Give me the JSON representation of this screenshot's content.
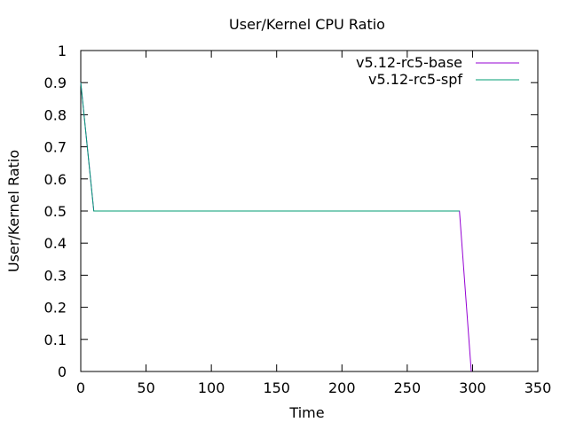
{
  "chart_data": {
    "type": "line",
    "title": "User/Kernel CPU Ratio",
    "xlabel": "Time",
    "ylabel": "User/Kernel Ratio",
    "xlim": [
      0,
      350
    ],
    "ylim": [
      0,
      1
    ],
    "x_ticks": [
      0,
      50,
      100,
      150,
      200,
      250,
      300,
      350
    ],
    "y_ticks": [
      0,
      0.1,
      0.2,
      0.3,
      0.4,
      0.5,
      0.6,
      0.7,
      0.8,
      0.9,
      1
    ],
    "x_tick_labels": [
      "0",
      "50",
      "100",
      "150",
      "200",
      "250",
      "300",
      "350"
    ],
    "y_tick_labels": [
      "0",
      "0.1",
      "0.2",
      "0.3",
      "0.4",
      "0.5",
      "0.6",
      "0.7",
      "0.8",
      "0.9",
      "1"
    ],
    "grid": false,
    "legend_position": "top-right",
    "series": [
      {
        "name": "v5.12-rc5-base",
        "color": "#9400d3",
        "x": [
          0,
          10,
          290,
          299
        ],
        "y": [
          0.9,
          0.5,
          0.5,
          0
        ]
      },
      {
        "name": "v5.12-rc5-spf",
        "color": "#009e73",
        "x": [
          0,
          10,
          290
        ],
        "y": [
          0.9,
          0.5,
          0.5
        ]
      }
    ]
  }
}
